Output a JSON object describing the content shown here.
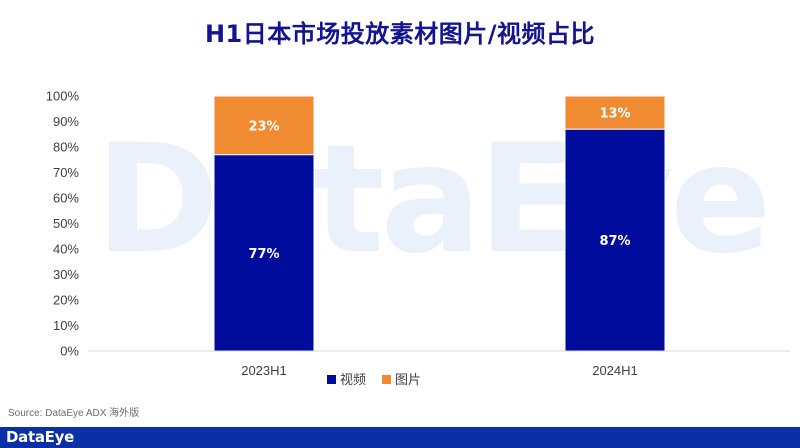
{
  "page": {
    "title": "H1日本市场投放素材图片/视频占比",
    "watermark": "DataEye",
    "source": "Source: DataEye ADX 海外版",
    "footer_logo": "DataEye"
  },
  "colors": {
    "video": "#000c9b",
    "image": "#f08b32",
    "axis": "#d9d9d9",
    "tick_text": "#404040",
    "bar_label": "#ffffff"
  },
  "chart_data": {
    "type": "bar",
    "stacked": true,
    "title": "H1日本市场投放素材图片/视频占比",
    "categories": [
      "2023H1",
      "2024H1"
    ],
    "series": [
      {
        "name": "视频",
        "values": [
          77,
          87
        ],
        "labels": [
          "77%",
          "87%"
        ]
      },
      {
        "name": "图片",
        "values": [
          23,
          13
        ],
        "labels": [
          "23%",
          "13%"
        ]
      }
    ],
    "ylim": [
      0,
      100
    ],
    "yticks": [
      "0%",
      "10%",
      "20%",
      "30%",
      "40%",
      "50%",
      "60%",
      "70%",
      "80%",
      "90%",
      "100%"
    ],
    "xlabel": "",
    "ylabel": "",
    "grid": false,
    "legend": {
      "position": "bottom",
      "entries": [
        "视频",
        "图片"
      ]
    }
  }
}
